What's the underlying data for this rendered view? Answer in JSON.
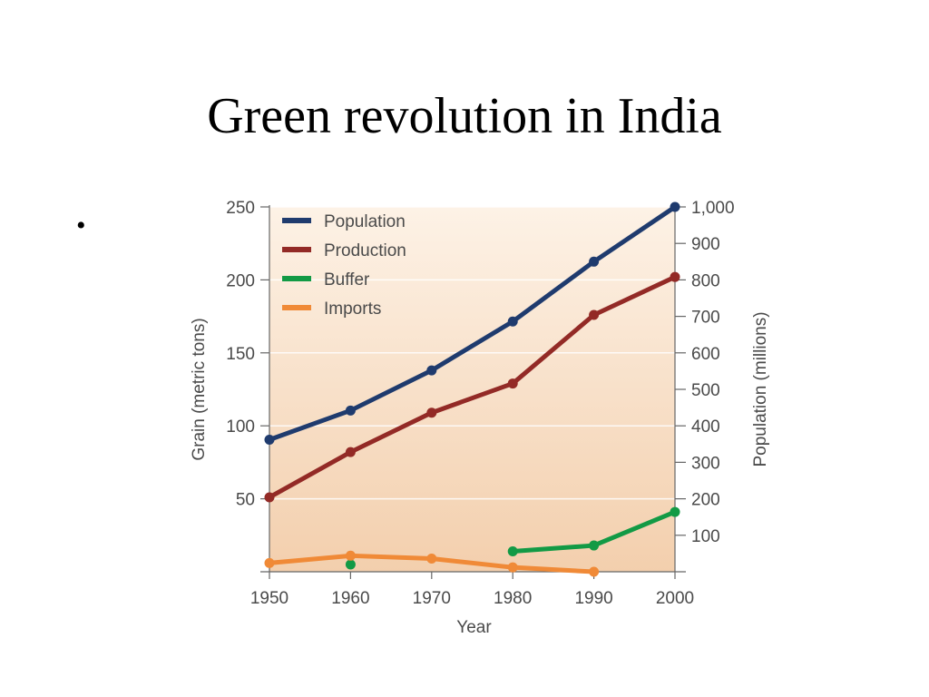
{
  "slide": {
    "title": "Green revolution in India",
    "bullet": "•"
  },
  "colors": {
    "background_top": "#fdf2e6",
    "background_bottom": "#f3cfad",
    "population": "#1f3b6e",
    "production": "#932a26",
    "buffer": "#129a45",
    "imports": "#f08a37",
    "axis": "#666666",
    "text": "#4a4a4a"
  },
  "chart_data": {
    "type": "line",
    "xlabel": "Year",
    "ylabel_left": "Grain (metric tons)",
    "ylabel_right": "Population (millions)",
    "xlim": [
      1950,
      2000
    ],
    "ylim_left": [
      0,
      250
    ],
    "ylim_right": [
      0,
      1000
    ],
    "x_ticks": [
      1950,
      1960,
      1970,
      1980,
      1990,
      2000
    ],
    "x_tick_labels": [
      "1950",
      "1960",
      "1970",
      "1980",
      "1990",
      "2000"
    ],
    "y_left_ticks": [
      50,
      100,
      150,
      200,
      250
    ],
    "y_left_tick_labels": [
      "50",
      "100",
      "150",
      "200",
      "250"
    ],
    "y_right_ticks": [
      100,
      200,
      300,
      400,
      500,
      600,
      700,
      800,
      900,
      1000
    ],
    "y_right_tick_labels": [
      "100",
      "200",
      "300",
      "400",
      "500",
      "600",
      "700",
      "800",
      "900",
      "1,000"
    ],
    "grid": "horizontal",
    "legend_position": "top-left",
    "series": [
      {
        "name": "Population",
        "axis": "right",
        "color": "#1f3b6e",
        "points": [
          [
            1950,
            362
          ],
          [
            1960,
            442
          ],
          [
            1970,
            552
          ],
          [
            1980,
            686
          ],
          [
            1990,
            850
          ],
          [
            2000,
            1000
          ]
        ]
      },
      {
        "name": "Production",
        "axis": "left",
        "color": "#932a26",
        "points": [
          [
            1950,
            51
          ],
          [
            1960,
            82
          ],
          [
            1970,
            109
          ],
          [
            1980,
            129
          ],
          [
            1990,
            176
          ],
          [
            2000,
            202
          ]
        ]
      },
      {
        "name": "Buffer",
        "axis": "left",
        "color": "#129a45",
        "points": [
          [
            1960,
            5
          ],
          [
            1980,
            14
          ],
          [
            1990,
            18
          ],
          [
            2000,
            41
          ]
        ]
      },
      {
        "name": "Imports",
        "axis": "left",
        "color": "#f08a37",
        "points": [
          [
            1950,
            6
          ],
          [
            1960,
            11
          ],
          [
            1970,
            9
          ],
          [
            1980,
            3
          ],
          [
            1990,
            0
          ]
        ]
      }
    ]
  }
}
